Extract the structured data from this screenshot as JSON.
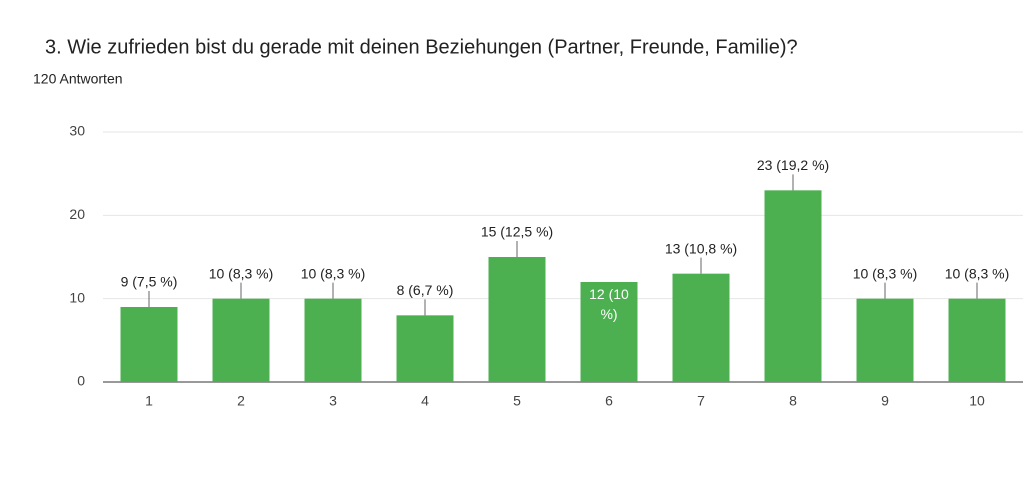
{
  "chart_data": {
    "type": "bar",
    "title": "3. Wie zufrieden bist du gerade mit deinen Beziehungen (Partner, Freunde, Familie)?",
    "subtitle": "120 Antworten",
    "categories": [
      "1",
      "2",
      "3",
      "4",
      "5",
      "6",
      "7",
      "8",
      "9",
      "10"
    ],
    "values": [
      9,
      10,
      10,
      8,
      15,
      12,
      13,
      23,
      10,
      10
    ],
    "value_labels": [
      "9 (7,5 %)",
      "10 (8,3 %)",
      "10 (8,3 %)",
      "8 (6,7 %)",
      "15 (12,5 %)",
      "12 (10 %)",
      "13 (10,8 %)",
      "23 (19,2 %)",
      "10 (8,3 %)",
      "10 (8,3 %)"
    ],
    "color": "#4caf50",
    "ylim": [
      0,
      30
    ],
    "yticks": [
      0,
      10,
      20,
      30
    ],
    "grid": true
  }
}
